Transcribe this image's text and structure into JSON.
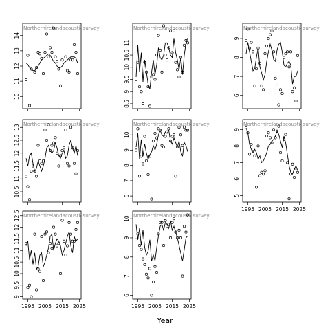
{
  "chart_data": {
    "type": "scatter",
    "xlabel": "Year",
    "xlim": [
      1992,
      2026
    ],
    "panels": [
      {
        "row": 0,
        "col": 0,
        "title": "Northernirelandacousticsurvey",
        "ylim": [
          9.2,
          14.8
        ],
        "yticks": [
          10,
          11,
          12,
          13,
          14
        ],
        "points": {
          "x": [
            1994,
            1995,
            1996,
            1997,
            1998,
            1999,
            2000,
            2001,
            2002,
            2003,
            2004,
            2005,
            2006,
            2007,
            2008,
            2009,
            2010,
            2011,
            2012,
            2013,
            2014,
            2015,
            2016,
            2017,
            2018,
            2019,
            2020,
            2021,
            2022,
            2023,
            2024
          ],
          "y": [
            11.1,
            12.7,
            9.4,
            11.8,
            12.0,
            11.6,
            11.9,
            12.9,
            12.8,
            12.5,
            11.5,
            12.9,
            14.1,
            12.6,
            13.2,
            12.9,
            14.5,
            12.6,
            12.3,
            11.8,
            10.7,
            12.4,
            12.0,
            12.6,
            11.7,
            11.6,
            12.4,
            12.4,
            13.4,
            12.9,
            11.5
          ]
        },
        "line": [
          12.2,
          12.1,
          11.9,
          11.8,
          11.7,
          11.7,
          11.8,
          12.0,
          12.2,
          12.4,
          12.5,
          12.6,
          12.7,
          12.8,
          12.7,
          12.5,
          12.3,
          12.2,
          12.0,
          11.9,
          11.9,
          12.0,
          12.2,
          12.3,
          12.4,
          12.5,
          12.6,
          12.6,
          12.6,
          12.5,
          12.2
        ]
      },
      {
        "row": 0,
        "col": 1,
        "title": "Northernirelandacousticsurvey",
        "ylim": [
          8.3,
          11.8
        ],
        "yticks": [
          8.5,
          9.0,
          9.5,
          10.0,
          10.5,
          11.0
        ],
        "points": {
          "x": [
            1994,
            1995,
            1996,
            1997,
            1998,
            1999,
            2000,
            2001,
            2002,
            2003,
            2004,
            2005,
            2006,
            2007,
            2008,
            2009,
            2010,
            2011,
            2012,
            2013,
            2014,
            2015,
            2016,
            2017,
            2018,
            2019,
            2020,
            2021,
            2022,
            2023,
            2024
          ],
          "y": [
            9.4,
            10.2,
            9.2,
            9.0,
            8.5,
            10.2,
            9.8,
            9.2,
            8.4,
            9.6,
            9.7,
            9.5,
            10.5,
            11.3,
            10.7,
            9.8,
            11.7,
            10.5,
            10.3,
            10.8,
            11.5,
            10.6,
            11.5,
            10.2,
            9.9,
            9.6,
            10.4,
            9.8,
            10.9,
            11.1,
            11.0
          ]
        },
        "line": [
          9.6,
          10.9,
          9.8,
          10.6,
          9.4,
          10.3,
          9.8,
          9.3,
          9.1,
          9.8,
          10.3,
          9.7,
          10.1,
          10.8,
          10.4,
          10.3,
          10.5,
          11.0,
          11.0,
          10.8,
          10.5,
          10.4,
          11.2,
          10.6,
          10.3,
          9.9,
          10.4,
          9.7,
          10.5,
          11.0,
          11.2
        ]
      },
      {
        "row": 0,
        "col": 2,
        "title": "Northernirelandacousticsurvey",
        "ylim": [
          5.3,
          9.8
        ],
        "yticks": [
          6,
          7,
          8,
          9
        ],
        "points": {
          "x": [
            1994,
            1995,
            1996,
            1997,
            1998,
            1999,
            2000,
            2001,
            2002,
            2003,
            2004,
            2005,
            2006,
            2007,
            2008,
            2009,
            2010,
            2011,
            2012,
            2013,
            2014,
            2015,
            2016,
            2017,
            2018,
            2019,
            2020,
            2021,
            2022,
            2023,
            2024
          ],
          "y": [
            8.9,
            9.5,
            8.5,
            8.8,
            8.3,
            6.5,
            7.4,
            8.5,
            7.7,
            6.5,
            6.3,
            8.2,
            8.6,
            9.0,
            9.2,
            9.4,
            8.3,
            6.9,
            6.5,
            5.5,
            6.3,
            6.1,
            8.0,
            8.2,
            8.3,
            7.5,
            8.3,
            6.2,
            6.4,
            5.7,
            8.1
          ]
        },
        "line": [
          8.2,
          8.8,
          8.3,
          7.8,
          7.3,
          7.4,
          8.0,
          8.5,
          7.5,
          7.2,
          6.8,
          7.1,
          7.8,
          8.3,
          8.7,
          8.4,
          7.9,
          7.8,
          8.4,
          8.7,
          8.8,
          8.3,
          7.6,
          7.5,
          7.7,
          7.8,
          7.6,
          6.6,
          7.0,
          7.0,
          7.3
        ]
      },
      {
        "row": 1,
        "col": 0,
        "title": "Northernirelandacousticsurvey",
        "ylim": [
          10.1,
          13.3
        ],
        "yticks": [
          10.5,
          11.0,
          11.5,
          12.0,
          12.5,
          13.0
        ],
        "points": {
          "x": [
            1994,
            1995,
            1996,
            1997,
            1998,
            1999,
            2000,
            2001,
            2002,
            2003,
            2004,
            2005,
            2006,
            2007,
            2008,
            2009,
            2010,
            2011,
            2012,
            2013,
            2014,
            2015,
            2016,
            2017,
            2018,
            2019,
            2020,
            2021,
            2022,
            2023,
            2024
          ],
          "y": [
            11.1,
            10.7,
            10.2,
            11.3,
            11.5,
            11.3,
            11.1,
            12.3,
            11.7,
            11.6,
            11.7,
            12.9,
            12.5,
            13.1,
            12.1,
            12.3,
            12.4,
            12.6,
            12.0,
            11.5,
            11.9,
            12.1,
            12.2,
            12.9,
            11.6,
            11.5,
            13.0,
            12.2,
            11.6,
            11.2,
            12.1
          ]
        },
        "line": [
          11.8,
          11.5,
          11.9,
          12.0,
          11.6,
          11.3,
          11.4,
          11.7,
          11.5,
          11.3,
          11.5,
          11.8,
          12.2,
          12.3,
          12.1,
          12.0,
          12.1,
          12.4,
          12.2,
          11.9,
          11.8,
          12.0,
          12.1,
          11.8,
          11.9,
          12.3,
          12.5,
          12.2,
          12.0,
          12.3,
          11.9
        ]
      },
      {
        "row": 1,
        "col": 1,
        "title": "Northernirelandacousticsurvey",
        "ylim": [
          5.6,
          11.0
        ],
        "yticks": [
          6,
          7,
          8,
          9,
          10
        ],
        "points": {
          "x": [
            1994,
            1995,
            1996,
            1997,
            1998,
            1999,
            2000,
            2001,
            2002,
            2003,
            2004,
            2005,
            2006,
            2007,
            2008,
            2009,
            2010,
            2011,
            2012,
            2013,
            2014,
            2015,
            2016,
            2017,
            2018,
            2019,
            2020,
            2021,
            2022,
            2023,
            2024
          ],
          "y": [
            9.0,
            10.4,
            7.3,
            8.6,
            8.1,
            9.9,
            8.3,
            7.4,
            8.6,
            5.8,
            9.6,
            10.1,
            9.8,
            10.4,
            10.3,
            9.3,
            9.2,
            9.9,
            10.2,
            10.4,
            9.6,
            9.9,
            10.0,
            7.3,
            9.2,
            10.5,
            10.0,
            9.3,
            10.5,
            10.3,
            10.3
          ]
        },
        "line": [
          9.2,
          10.1,
          8.4,
          9.7,
          8.6,
          9.4,
          8.8,
          8.4,
          8.7,
          8.9,
          9.3,
          9.0,
          9.4,
          10.0,
          10.3,
          10.0,
          9.9,
          10.2,
          10.1,
          10.3,
          9.6,
          9.4,
          9.8,
          9.5,
          9.2,
          9.6,
          8.9,
          8.6,
          9.5,
          9.3,
          8.9
        ]
      },
      {
        "row": 1,
        "col": 2,
        "title": "Northernirelandacousticsurvey",
        "ylim": [
          4.6,
          9.6
        ],
        "yticks": [
          5,
          6,
          7,
          8,
          9
        ],
        "points": {
          "x": [
            1994,
            1995,
            1996,
            1997,
            1998,
            1999,
            2000,
            2001,
            2002,
            2003,
            2004,
            2005,
            2006,
            2007,
            2008,
            2009,
            2010,
            2011,
            2012,
            2013,
            2014,
            2015,
            2016,
            2017,
            2018,
            2019,
            2020,
            2021,
            2022,
            2023,
            2024
          ],
          "y": [
            9.1,
            8.8,
            7.5,
            8.1,
            7.8,
            7.4,
            5.5,
            8.0,
            6.2,
            6.4,
            6.3,
            6.5,
            8.6,
            8.8,
            8.5,
            8.2,
            9.0,
            8.5,
            8.9,
            9.2,
            7.6,
            7.1,
            8.4,
            8.7,
            7.0,
            4.8,
            6.3,
            6.9,
            6.1,
            6.6,
            6.4
          ]
        },
        "line": [
          9.1,
          8.8,
          8.1,
          7.8,
          7.6,
          7.8,
          7.6,
          7.2,
          7.4,
          7.0,
          7.1,
          7.3,
          7.6,
          8.0,
          8.1,
          8.3,
          8.4,
          8.6,
          8.9,
          8.7,
          8.3,
          7.9,
          8.6,
          8.2,
          7.5,
          6.8,
          6.4,
          6.3,
          6.6,
          6.8,
          6.5
        ]
      },
      {
        "row": 2,
        "col": 0,
        "title": "Northernirelandacousticsurvey",
        "ylim": [
          8.9,
          12.7
        ],
        "yticks": [
          9.0,
          9.5,
          10.0,
          10.5,
          11.0,
          11.5,
          12.0,
          12.5
        ],
        "points": {
          "x": [
            1994,
            1995,
            1996,
            1997,
            1998,
            1999,
            2000,
            2001,
            2002,
            2003,
            2004,
            2005,
            2006,
            2007,
            2008,
            2009,
            2010,
            2011,
            2012,
            2013,
            2014,
            2015,
            2016,
            2017,
            2018,
            2019,
            2020,
            2021,
            2022,
            2023,
            2024
          ],
          "y": [
            11.3,
            9.4,
            9.5,
            9.0,
            10.5,
            11.7,
            9.3,
            10.2,
            10.1,
            11.6,
            9.7,
            11.7,
            11.8,
            10.9,
            11.3,
            11.1,
            12.0,
            11.7,
            11.2,
            11.3,
            10.0,
            12.3,
            11.4,
            10.8,
            11.2,
            12.2,
            11.7,
            11.4,
            11.4,
            11.9,
            12.2
          ]
        },
        "line": [
          11.2,
          11.4,
          10.6,
          11.0,
          10.4,
          10.9,
          10.2,
          10.3,
          10.8,
          10.9,
          10.3,
          10.5,
          10.8,
          11.1,
          11.6,
          11.7,
          11.0,
          11.3,
          11.5,
          11.4,
          11.2,
          10.8,
          11.0,
          11.3,
          11.6,
          11.8,
          11.2,
          10.9,
          11.6,
          11.4,
          11.5
        ]
      },
      {
        "row": 2,
        "col": 1,
        "title": "Northernirelandacousticsurvey",
        "ylim": [
          5.8,
          10.4
        ],
        "yticks": [
          6,
          7,
          8,
          9,
          10
        ],
        "points": {
          "x": [
            1994,
            1995,
            1996,
            1997,
            1998,
            1999,
            2000,
            2001,
            2002,
            2003,
            2004,
            2005,
            2006,
            2007,
            2008,
            2009,
            2010,
            2011,
            2012,
            2013,
            2014,
            2015,
            2016,
            2017,
            2018,
            2019,
            2020,
            2021,
            2022,
            2023,
            2024
          ],
          "y": [
            8.9,
            9.2,
            8.6,
            8.4,
            7.9,
            7.6,
            7.1,
            6.9,
            7.4,
            6.0,
            6.7,
            7.5,
            7.2,
            9.2,
            9.8,
            9.8,
            8.6,
            9.9,
            9.6,
            9.7,
            9.0,
            9.8,
            10.0,
            9.3,
            9.0,
            9.4,
            9.0,
            7.0,
            9.6,
            9.3,
            10.2
          ]
        },
        "line": [
          9.7,
          8.9,
          9.5,
          8.6,
          9.4,
          8.5,
          8.1,
          8.3,
          8.9,
          7.8,
          8.1,
          7.8,
          8.5,
          9.1,
          9.6,
          9.7,
          9.4,
          9.8,
          9.7,
          9.5,
          9.9,
          9.4,
          9.6,
          9.3,
          9.0,
          8.6,
          8.2,
          7.8,
          8.4,
          9.0,
          9.1
        ]
      }
    ],
    "xticks": [
      1995,
      2005,
      2015,
      2025
    ]
  }
}
